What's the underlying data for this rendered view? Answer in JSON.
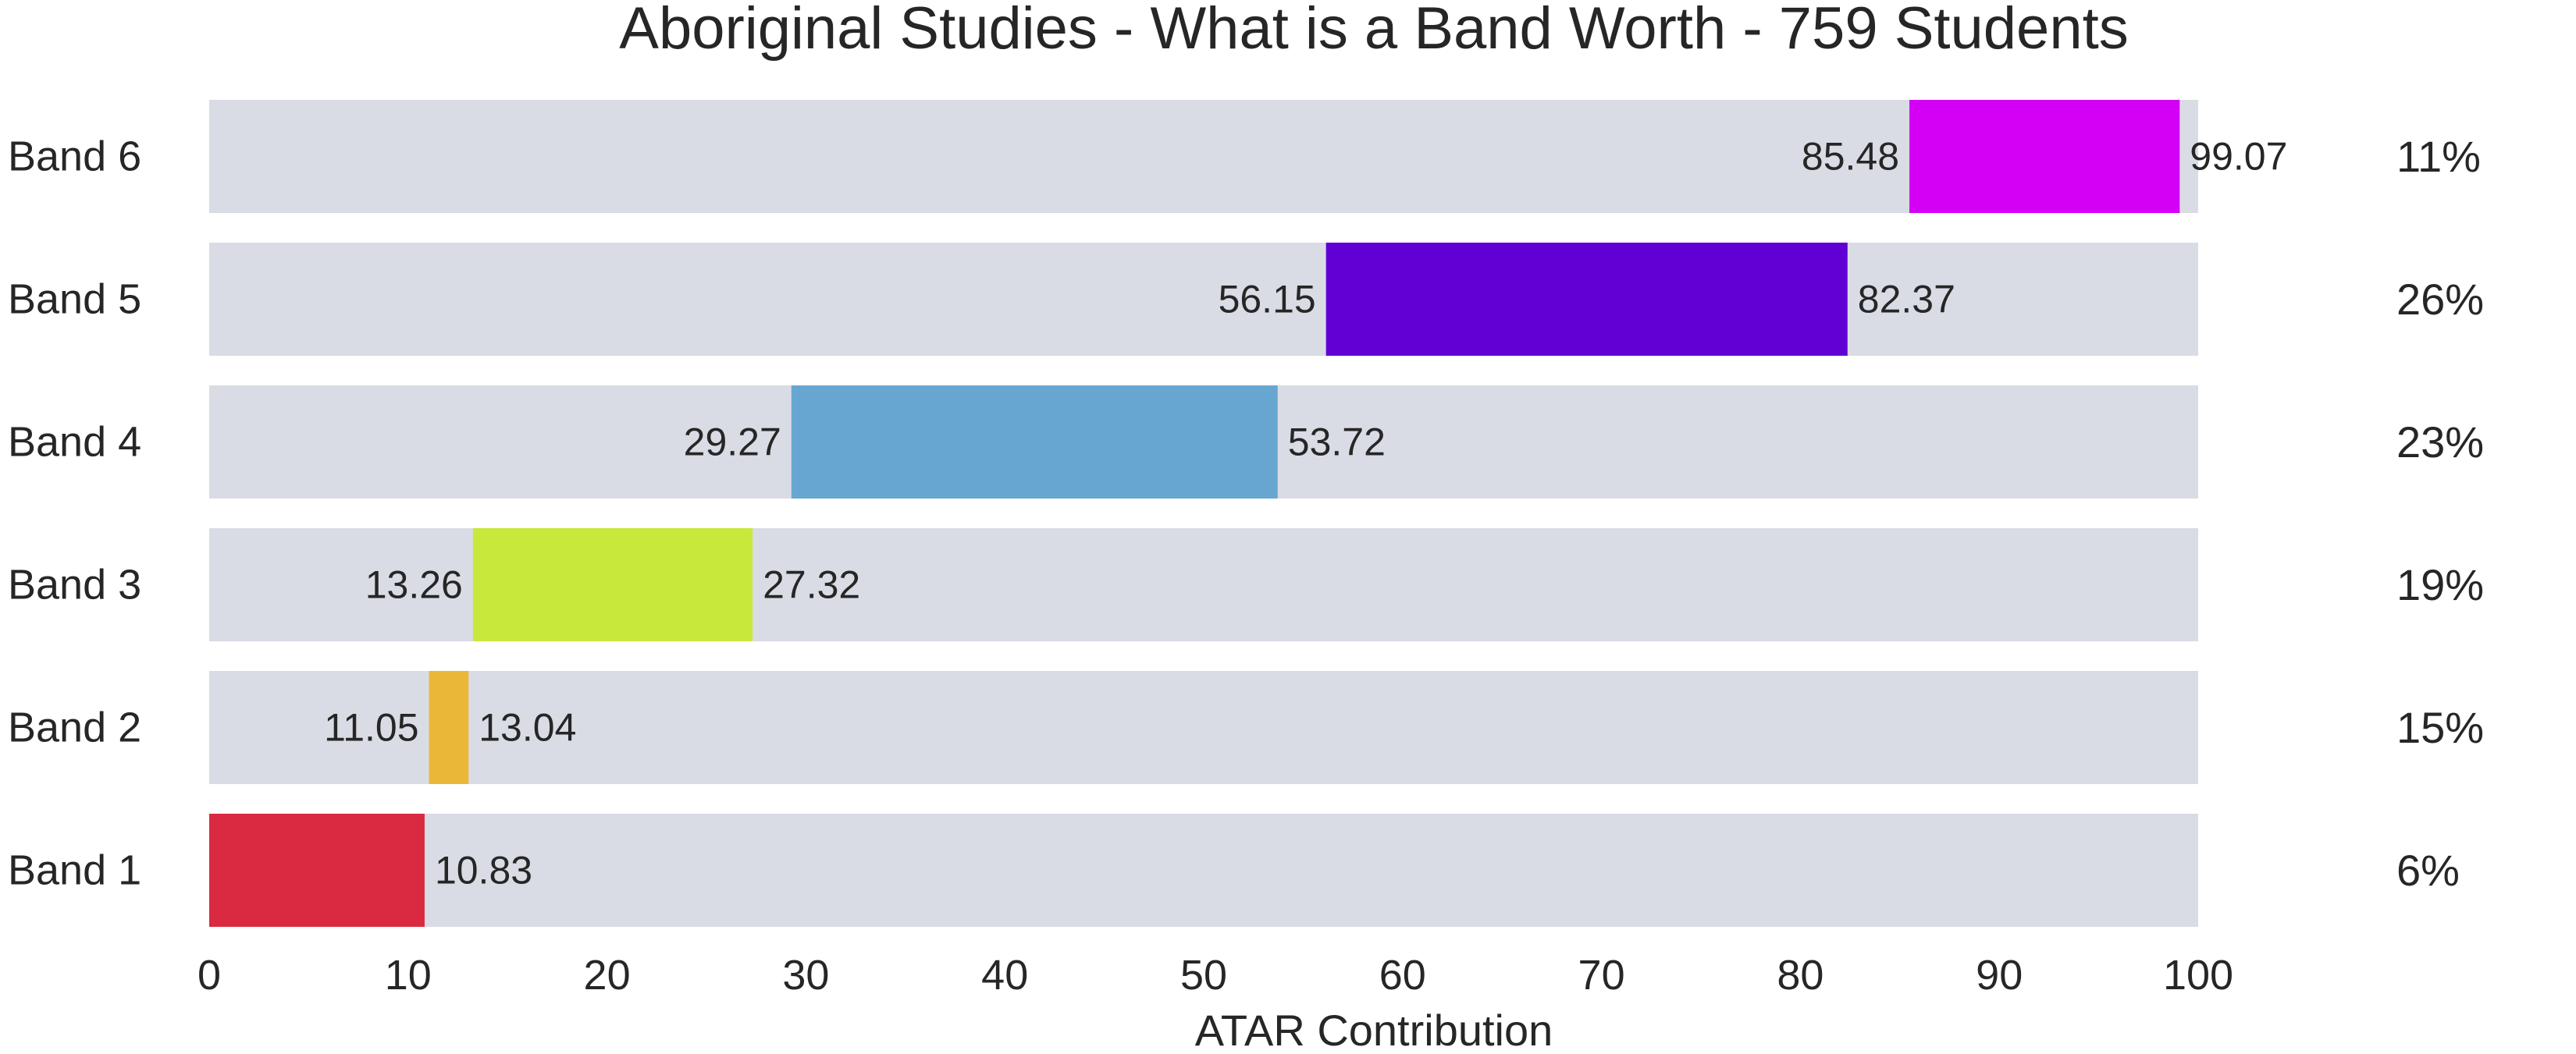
{
  "chart_data": {
    "type": "bar",
    "title": "Aboriginal Studies - What is a Band Worth - 759 Students",
    "xlabel": "ATAR Contribution",
    "ylabel": "",
    "xlim": [
      0,
      100
    ],
    "x_ticks": [
      "0",
      "10",
      "20",
      "30",
      "40",
      "50",
      "60",
      "70",
      "80",
      "90",
      "100"
    ],
    "grid": false,
    "legend": "none",
    "background_bar_color": "#d9dce4",
    "categories": [
      "Band 6",
      "Band 5",
      "Band 4",
      "Band 3",
      "Band 2",
      "Band 1"
    ],
    "bands": [
      {
        "label": "Band 6",
        "start": 85.48,
        "end": 99.07,
        "start_label": "85.48",
        "end_label": "99.07",
        "percent": "11%",
        "color": "#d400f5"
      },
      {
        "label": "Band 5",
        "start": 56.15,
        "end": 82.37,
        "start_label": "56.15",
        "end_label": "82.37",
        "percent": "26%",
        "color": "#6100d4"
      },
      {
        "label": "Band 4",
        "start": 29.27,
        "end": 53.72,
        "start_label": "29.27",
        "end_label": "53.72",
        "percent": "23%",
        "color": "#68a6d2"
      },
      {
        "label": "Band 3",
        "start": 13.26,
        "end": 27.32,
        "start_label": "13.26",
        "end_label": "27.32",
        "percent": "19%",
        "color": "#c8e83c"
      },
      {
        "label": "Band 2",
        "start": 11.05,
        "end": 13.04,
        "start_label": "11.05",
        "end_label": "13.04",
        "percent": "15%",
        "color": "#ebb739"
      },
      {
        "label": "Band 1",
        "start": 0,
        "end": 10.83,
        "start_label": "",
        "end_label": "10.83",
        "percent": "6%",
        "color": "#d92a41"
      }
    ]
  }
}
